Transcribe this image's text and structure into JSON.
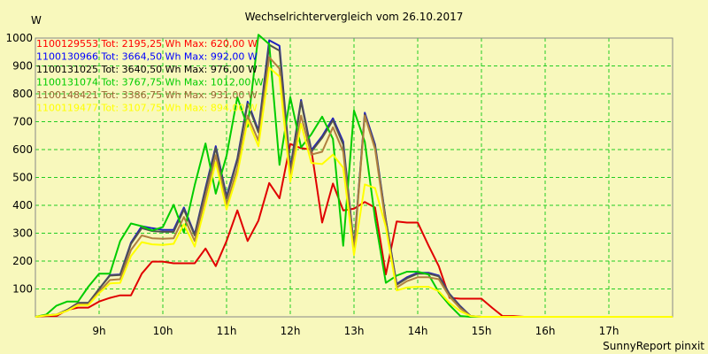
{
  "chart_data": {
    "type": "line",
    "title": "Wechselrichtervergleich vom 26.10.2017",
    "ylabel": "W",
    "footer": "SunnyReport pinxit",
    "xlim": [
      8.0,
      18.0
    ],
    "ylim": [
      0,
      1000
    ],
    "x_ticks": [
      {
        "x": 9,
        "label": "9h"
      },
      {
        "x": 10,
        "label": "10h"
      },
      {
        "x": 11,
        "label": "11h"
      },
      {
        "x": 12,
        "label": "12h"
      },
      {
        "x": 13,
        "label": "13h"
      },
      {
        "x": 14,
        "label": "14h"
      },
      {
        "x": 15,
        "label": "15h"
      },
      {
        "x": 16,
        "label": "16h"
      },
      {
        "x": 17,
        "label": "17h"
      }
    ],
    "y_ticks": [
      100,
      200,
      300,
      400,
      500,
      600,
      700,
      800,
      900,
      1000
    ],
    "grid": true,
    "background": "#f8f8bc",
    "grid_color": "#22cc22",
    "x": [
      8.0,
      8.17,
      8.33,
      8.5,
      8.67,
      8.83,
      9.0,
      9.17,
      9.33,
      9.5,
      9.67,
      9.83,
      10.0,
      10.17,
      10.33,
      10.5,
      10.67,
      10.83,
      11.0,
      11.17,
      11.33,
      11.5,
      11.67,
      11.83,
      12.0,
      12.17,
      12.33,
      12.5,
      12.67,
      12.83,
      13.0,
      13.17,
      13.33,
      13.5,
      13.67,
      13.83,
      14.0,
      14.17,
      14.33,
      14.5,
      14.67,
      14.83,
      15.0,
      15.17,
      15.33,
      15.5,
      15.67,
      15.83,
      16.0,
      16.17,
      16.33,
      16.5,
      16.67,
      16.83,
      17.0,
      17.17,
      17.33,
      17.5,
      17.67,
      17.83,
      18.0
    ],
    "series": [
      {
        "name": "1100129553 Tot: 2195,25 Wh Max: 620,00 W",
        "color": "#ff0000",
        "line_color": "#e00000",
        "values": [
          0,
          3,
          3,
          25,
          33,
          33,
          55,
          68,
          77,
          77,
          155,
          198,
          198,
          192,
          192,
          192,
          245,
          182,
          272,
          382,
          272,
          345,
          480,
          425,
          620,
          605,
          600,
          338,
          478,
          382,
          388,
          412,
          392,
          152,
          342,
          338,
          338,
          256,
          182,
          68,
          65,
          65,
          65,
          32,
          3,
          3,
          0,
          0,
          0,
          0,
          0,
          0,
          0,
          0,
          0,
          0,
          0,
          0,
          0,
          0,
          0
        ]
      },
      {
        "name": "1100130966 Tot: 3664,50 Wh Max: 992,00 W",
        "color": "#0000ff",
        "line_color": "#2020c0",
        "values": [
          0,
          5,
          8,
          25,
          50,
          50,
          100,
          150,
          152,
          266,
          325,
          318,
          312,
          312,
          392,
          296,
          462,
          612,
          432,
          568,
          772,
          668,
          992,
          972,
          532,
          778,
          598,
          648,
          712,
          628,
          248,
          732,
          618,
          348,
          118,
          142,
          158,
          158,
          148,
          82,
          38,
          3,
          0,
          0,
          0,
          0,
          0,
          0,
          0,
          0,
          0,
          0,
          0,
          0,
          0,
          0,
          0,
          0,
          0,
          0,
          0
        ]
      },
      {
        "name": "1100131025 Tot: 3640,50 Wh Max: 976,00 W",
        "color": "#000000",
        "line_color": "#505050",
        "values": [
          0,
          5,
          8,
          25,
          50,
          50,
          100,
          148,
          150,
          262,
          318,
          308,
          305,
          305,
          385,
          292,
          455,
          605,
          425,
          562,
          765,
          662,
          976,
          955,
          525,
          772,
          592,
          642,
          705,
          618,
          245,
          725,
          612,
          345,
          115,
          138,
          155,
          155,
          145,
          80,
          36,
          3,
          0,
          0,
          0,
          0,
          0,
          0,
          0,
          0,
          0,
          0,
          0,
          0,
          0,
          0,
          0,
          0,
          0,
          0,
          0
        ]
      },
      {
        "name": "1100131074 Tot: 3767,75 Wh Max: 1012,00 W",
        "color": "#00cc00",
        "line_color": "#00cc00",
        "values": [
          0,
          8,
          40,
          55,
          55,
          108,
          155,
          155,
          272,
          335,
          325,
          310,
          322,
          402,
          302,
          472,
          622,
          442,
          578,
          788,
          682,
          1012,
          978,
          545,
          788,
          608,
          655,
          718,
          638,
          255,
          740,
          628,
          352,
          122,
          148,
          162,
          162,
          152,
          88,
          42,
          3,
          0,
          0,
          0,
          0,
          0,
          0,
          0,
          0,
          0,
          0,
          0,
          0,
          0,
          0,
          0,
          0,
          0,
          0,
          0,
          0
        ]
      },
      {
        "name": "1100148421 Tot: 3386,75 Wh Max: 931,00 W",
        "color": "#996633",
        "line_color": "#b08040",
        "values": [
          0,
          5,
          8,
          22,
          45,
          45,
          90,
          132,
          135,
          240,
          292,
          282,
          280,
          282,
          358,
          272,
          430,
          580,
          402,
          532,
          722,
          632,
          931,
          890,
          505,
          722,
          582,
          592,
          680,
          592,
          232,
          722,
          602,
          332,
          105,
          128,
          142,
          142,
          135,
          72,
          30,
          3,
          0,
          0,
          0,
          0,
          0,
          0,
          0,
          0,
          0,
          0,
          0,
          0,
          0,
          0,
          0,
          0,
          0,
          0,
          0
        ]
      },
      {
        "name": "1100119477 Tot: 3107,75 Wh Max: 894,00 W",
        "color": "#ffff00",
        "line_color": "#ffff00",
        "values": [
          0,
          5,
          8,
          22,
          42,
          42,
          85,
          120,
          122,
          218,
          268,
          260,
          258,
          262,
          332,
          252,
          402,
          555,
          385,
          512,
          705,
          612,
          894,
          862,
          485,
          692,
          552,
          548,
          582,
          535,
          222,
          475,
          462,
          322,
          95,
          105,
          108,
          108,
          92,
          50,
          20,
          3,
          0,
          0,
          0,
          0,
          0,
          0,
          0,
          0,
          0,
          0,
          0,
          0,
          0,
          0,
          0,
          0,
          0,
          0,
          0
        ]
      }
    ]
  }
}
